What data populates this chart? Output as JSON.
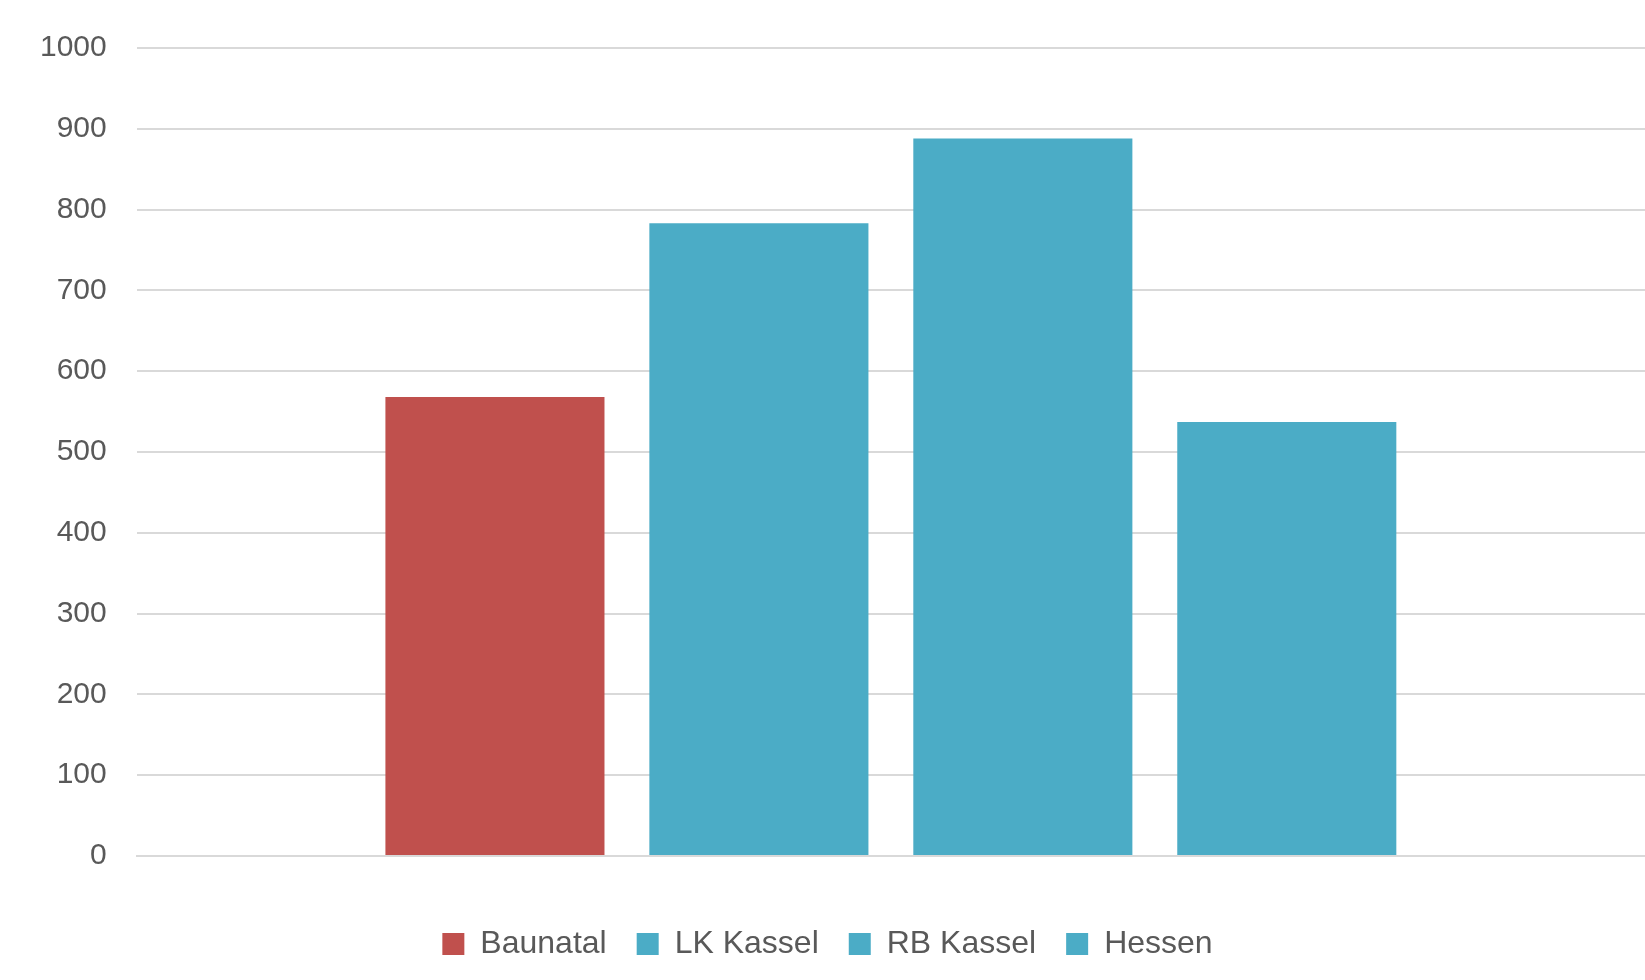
{
  "chart_data": {
    "type": "bar",
    "categories": [
      null
    ],
    "series": [
      {
        "name": "Baunatal",
        "color": "#c0504d",
        "values": [
          568
        ]
      },
      {
        "name": "LK Kassel",
        "color": "#4bacc6",
        "values": [
          783
        ]
      },
      {
        "name": "RB Kassel",
        "color": "#4bacc6",
        "values": [
          888
        ]
      },
      {
        "name": "Hessen",
        "color": "#4bacc6",
        "values": [
          537
        ]
      }
    ],
    "ylim": [
      0,
      1000
    ],
    "yticks": [
      0,
      100,
      200,
      300,
      400,
      500,
      600,
      700,
      800,
      900,
      1000
    ],
    "grid": "y",
    "legend": "bottom"
  }
}
